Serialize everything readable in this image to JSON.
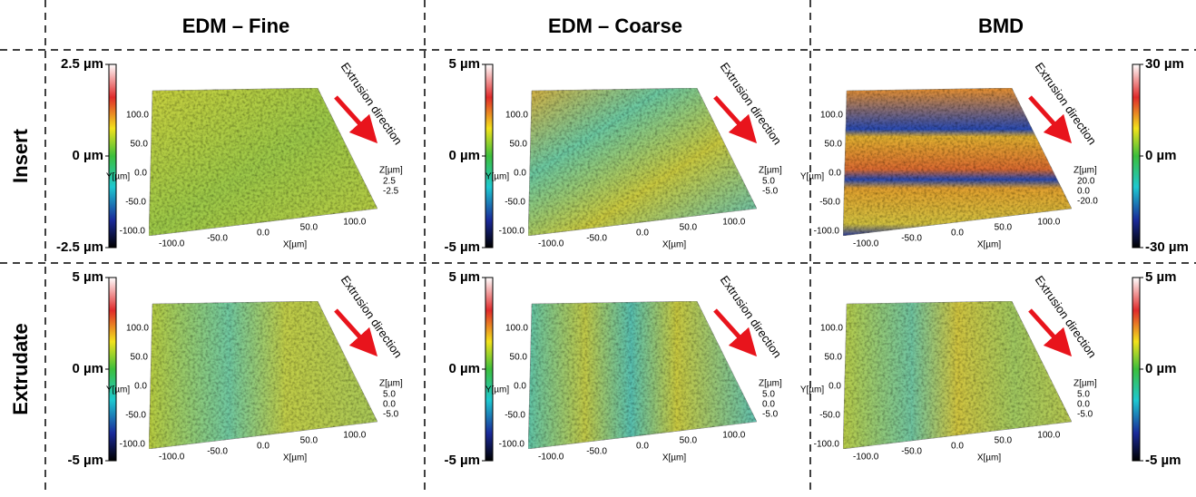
{
  "columns": [
    "EDM – Fine",
    "EDM – Coarse",
    "BMD"
  ],
  "rows": [
    "Insert",
    "Extrudate"
  ],
  "axis_labels": {
    "x": "X[µm]",
    "y": "Y[µm]",
    "z": "Z[µm]"
  },
  "direction_label": "Extrusion direction",
  "panels": [
    {
      "colorbar": [
        "2.5 µm",
        "0 µm",
        "-2.5 µm"
      ],
      "y_ticks": [
        "100.0",
        "50.0",
        "0.0",
        "-50.0",
        "-100.0"
      ],
      "x_ticks": [
        "-100.0",
        "-50.0",
        "0.0",
        "50.0",
        "100.0"
      ],
      "z_ticks": [
        "2.5",
        "-2.5"
      ]
    },
    {
      "colorbar": [
        "5 µm",
        "0 µm",
        "-5 µm"
      ],
      "y_ticks": [
        "100.0",
        "50.0",
        "0.0",
        "-50.0",
        "-100.0"
      ],
      "x_ticks": [
        "-100.0",
        "-50.0",
        "0.0",
        "50.0",
        "100.0"
      ],
      "z_ticks": [
        "5.0",
        "-5.0"
      ]
    },
    {
      "colorbar": [
        "30 µm",
        "0 µm",
        "-30 µm"
      ],
      "y_ticks": [
        "100.0",
        "50.0",
        "0.0",
        "-50.0",
        "-100.0"
      ],
      "x_ticks": [
        "-100.0",
        "-50.0",
        "0.0",
        "50.0",
        "100.0"
      ],
      "z_ticks": [
        "20.0",
        "0.0",
        "-20.0"
      ]
    },
    {
      "colorbar": [
        "5 µm",
        "0 µm",
        "-5 µm"
      ],
      "y_ticks": [
        "100.0",
        "50.0",
        "0.0",
        "-50.0",
        "-100.0"
      ],
      "x_ticks": [
        "-100.0",
        "-50.0",
        "0.0",
        "50.0",
        "100.0"
      ],
      "z_ticks": [
        "5.0",
        "0.0",
        "-5.0"
      ]
    },
    {
      "colorbar": [
        "5 µm",
        "0 µm",
        "-5 µm"
      ],
      "y_ticks": [
        "100.0",
        "50.0",
        "0.0",
        "-50.0",
        "-100.0"
      ],
      "x_ticks": [
        "-100.0",
        "-50.0",
        "0.0",
        "50.0",
        "100.0"
      ],
      "z_ticks": [
        "5.0",
        "0.0",
        "-5.0"
      ]
    },
    {
      "colorbar": [
        "5 µm",
        "0 µm",
        "-5 µm"
      ],
      "y_ticks": [
        "100.0",
        "50.0",
        "0.0",
        "-50.0",
        "-100.0"
      ],
      "x_ticks": [
        "-100.0",
        "-50.0",
        "0.0",
        "50.0",
        "100.0"
      ],
      "z_ticks": [
        "5.0",
        "0.0",
        "-5.0"
      ]
    }
  ]
}
